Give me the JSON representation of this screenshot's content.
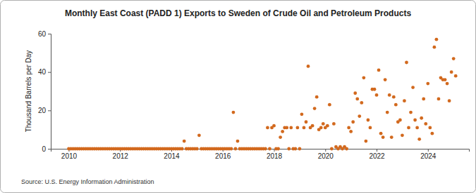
{
  "chart_data": {
    "type": "scatter",
    "title": "Monthly East Coast (PADD 1) Exports to Sweden of Crude Oil and Petroleum Products",
    "y_label": "Thousand Barrels per Day",
    "source": "Source: U.S. Energy Information Administration",
    "color": "#d2691e",
    "marker": "circle",
    "grid": false,
    "xlim": [
      2009.3,
      2025.6
    ],
    "xticks": [
      2010,
      2012,
      2014,
      2016,
      2018,
      2020,
      2022,
      2024
    ],
    "ylim": [
      0,
      60
    ],
    "yticks": [
      0,
      20,
      40,
      60
    ],
    "x": [
      2010,
      2010.083,
      2010.167,
      2010.25,
      2010.333,
      2010.417,
      2010.5,
      2010.583,
      2010.667,
      2010.75,
      2010.833,
      2010.917,
      2011,
      2011.083,
      2011.167,
      2011.25,
      2011.333,
      2011.417,
      2011.5,
      2011.583,
      2011.667,
      2011.75,
      2011.833,
      2011.917,
      2012,
      2012.083,
      2012.167,
      2012.25,
      2012.333,
      2012.417,
      2012.5,
      2012.583,
      2012.667,
      2012.75,
      2012.833,
      2012.917,
      2013,
      2013.083,
      2013.167,
      2013.25,
      2013.333,
      2013.417,
      2013.5,
      2013.583,
      2013.667,
      2013.75,
      2013.833,
      2013.917,
      2014,
      2014.083,
      2014.167,
      2014.25,
      2014.333,
      2014.417,
      2014.5,
      2014.583,
      2014.667,
      2014.75,
      2014.833,
      2014.917,
      2015,
      2015.083,
      2015.167,
      2015.25,
      2015.333,
      2015.417,
      2015.5,
      2015.583,
      2015.667,
      2015.75,
      2015.833,
      2015.917,
      2016,
      2016.083,
      2016.167,
      2016.25,
      2016.333,
      2016.417,
      2016.5,
      2016.583,
      2016.667,
      2016.75,
      2016.833,
      2016.917,
      2017,
      2017.083,
      2017.167,
      2017.25,
      2017.333,
      2017.417,
      2017.5,
      2017.583,
      2017.667,
      2017.75,
      2017.833,
      2017.917,
      2018,
      2018.083,
      2018.167,
      2018.25,
      2018.333,
      2018.417,
      2018.5,
      2018.583,
      2018.667,
      2018.75,
      2018.833,
      2018.917,
      2019,
      2019.083,
      2019.167,
      2019.25,
      2019.333,
      2019.417,
      2019.5,
      2019.583,
      2019.667,
      2019.75,
      2019.833,
      2019.917,
      2020,
      2020.083,
      2020.167,
      2020.25,
      2020.333,
      2020.417,
      2020.5,
      2020.583,
      2020.667,
      2020.75,
      2020.833,
      2020.917,
      2021,
      2021.083,
      2021.167,
      2021.25,
      2021.333,
      2021.417,
      2021.5,
      2021.583,
      2021.667,
      2021.75,
      2021.833,
      2021.917,
      2022,
      2022.083,
      2022.167,
      2022.25,
      2022.333,
      2022.417,
      2022.5,
      2022.583,
      2022.667,
      2022.75,
      2022.833,
      2022.917,
      2023,
      2023.083,
      2023.167,
      2023.25,
      2023.333,
      2023.417,
      2023.5,
      2023.583,
      2023.667,
      2023.75,
      2023.833,
      2023.917,
      2024,
      2024.083,
      2024.167,
      2024.25,
      2024.333,
      2024.417,
      2024.5,
      2024.583,
      2024.667,
      2024.75,
      2024.833,
      2024.917,
      2025,
      2025.083
    ],
    "values": [
      0,
      0,
      0,
      0,
      0,
      0,
      0,
      0,
      0,
      0,
      0,
      0,
      0,
      0,
      0,
      0,
      0,
      0,
      0,
      0,
      0,
      0,
      0,
      0,
      0,
      0,
      0,
      0,
      0,
      0,
      0,
      0,
      0,
      0,
      0,
      0,
      0,
      0,
      0,
      0,
      0,
      0,
      0,
      0,
      0,
      0,
      0,
      0,
      0,
      0,
      0,
      0,
      0,
      0,
      4,
      0,
      0,
      0,
      0,
      0,
      0,
      7,
      0,
      0,
      0,
      0,
      0,
      0,
      0,
      0,
      0,
      0,
      0,
      0,
      0,
      0,
      0,
      19,
      0,
      4,
      0,
      0,
      0,
      0,
      0,
      0,
      0,
      0,
      0,
      0,
      0,
      0,
      0,
      11,
      0,
      11,
      12,
      0,
      0,
      6,
      9,
      11,
      11,
      0,
      11,
      0,
      0,
      11,
      0,
      18,
      11,
      14,
      43,
      11,
      12,
      21,
      27,
      10,
      11,
      13,
      11,
      12,
      23,
      0,
      13,
      1,
      0,
      1,
      0,
      1,
      0,
      11,
      9,
      14,
      29,
      26,
      17,
      24,
      37,
      4,
      15,
      11,
      31,
      31,
      28,
      41,
      8,
      6,
      36,
      19,
      28,
      6,
      27,
      23,
      14,
      15,
      7,
      25,
      45,
      11,
      19,
      32,
      15,
      11,
      5,
      16,
      26,
      13,
      34,
      11,
      8,
      53,
      57,
      26,
      37,
      36,
      36,
      34,
      25,
      40,
      47,
      38
    ]
  }
}
